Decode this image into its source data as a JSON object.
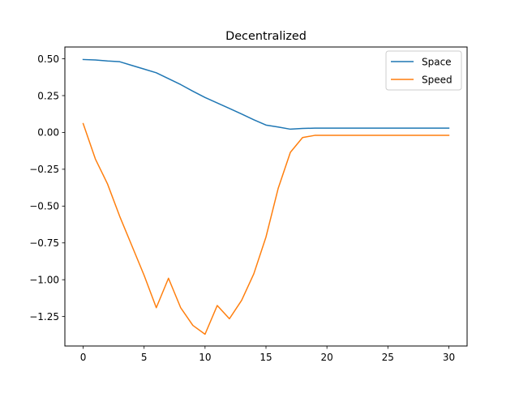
{
  "chart_data": {
    "type": "line",
    "title": "Decentralized",
    "xlabel": "",
    "ylabel": "",
    "xlim": [
      -1.5,
      31.5
    ],
    "ylim": [
      -1.45,
      0.58
    ],
    "xticks": [
      0,
      5,
      10,
      15,
      20,
      25,
      30
    ],
    "xtick_labels": [
      "0",
      "5",
      "10",
      "15",
      "20",
      "25",
      "30"
    ],
    "yticks": [
      0.5,
      0.25,
      0.0,
      -0.25,
      -0.5,
      -0.75,
      -1.0,
      -1.25
    ],
    "ytick_labels": [
      "0.50",
      "0.25",
      "0.00",
      "−0.25",
      "−0.50",
      "−0.75",
      "−1.00",
      "−1.25"
    ],
    "grid": false,
    "legend_position": "top-right",
    "x": [
      0,
      1,
      2,
      3,
      4,
      5,
      6,
      7,
      8,
      9,
      10,
      11,
      12,
      13,
      14,
      15,
      16,
      17,
      18,
      19,
      20,
      21,
      22,
      23,
      24,
      25,
      26,
      27,
      28,
      29,
      30
    ],
    "series": [
      {
        "name": "Space",
        "color": "#1f77b4",
        "values": [
          0.495,
          0.492,
          0.485,
          0.48,
          0.455,
          0.43,
          0.405,
          0.365,
          0.325,
          0.28,
          0.237,
          0.2,
          0.163,
          0.125,
          0.086,
          0.05,
          0.037,
          0.022,
          0.027,
          0.029,
          0.029,
          0.029,
          0.029,
          0.029,
          0.029,
          0.029,
          0.029,
          0.029,
          0.029,
          0.029,
          0.029
        ]
      },
      {
        "name": "Speed",
        "color": "#ff7f0e",
        "values": [
          0.06,
          -0.18,
          -0.35,
          -0.57,
          -0.77,
          -0.97,
          -1.19,
          -0.99,
          -1.19,
          -1.31,
          -1.37,
          -1.175,
          -1.265,
          -1.14,
          -0.96,
          -0.71,
          -0.38,
          -0.135,
          -0.035,
          -0.02,
          -0.02,
          -0.02,
          -0.02,
          -0.02,
          -0.02,
          -0.02,
          -0.02,
          -0.02,
          -0.02,
          -0.02,
          -0.02
        ]
      }
    ]
  }
}
